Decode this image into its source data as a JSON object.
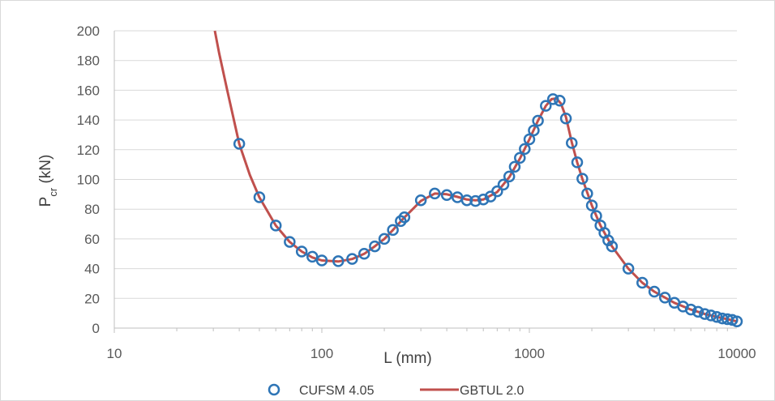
{
  "chart_data": {
    "type": "scatter",
    "xlabel": "L (mm)",
    "ylabel_main": "P",
    "ylabel_sub": "cr",
    "ylabel_unit": " (kN)",
    "xscale": "log",
    "xlim": [
      10,
      10000
    ],
    "ylim": [
      0,
      200
    ],
    "x_ticks": [
      10,
      100,
      1000,
      10000
    ],
    "x_tick_labels": [
      "10",
      "100",
      "1000",
      "10000"
    ],
    "y_ticks": [
      0,
      20,
      40,
      60,
      80,
      100,
      120,
      140,
      160,
      180,
      200
    ],
    "y_tick_labels": [
      "0",
      "20",
      "40",
      "60",
      "80",
      "100",
      "120",
      "140",
      "160",
      "180",
      "200"
    ],
    "grid": "horizontal",
    "legend_position": "bottom",
    "series": [
      {
        "name": "CUFSM 4.05",
        "style": "markers",
        "color": "#2e75b6",
        "points": [
          [
            40,
            124
          ],
          [
            50,
            88
          ],
          [
            60,
            69
          ],
          [
            70,
            58
          ],
          [
            80,
            51.5
          ],
          [
            90,
            48
          ],
          [
            100,
            45.5
          ],
          [
            120,
            45
          ],
          [
            140,
            46.5
          ],
          [
            160,
            50
          ],
          [
            180,
            55
          ],
          [
            200,
            60
          ],
          [
            220,
            66
          ],
          [
            240,
            72
          ],
          [
            250,
            74.5
          ],
          [
            300,
            86
          ],
          [
            350,
            90.5
          ],
          [
            400,
            89.5
          ],
          [
            450,
            88
          ],
          [
            500,
            86
          ],
          [
            550,
            85.5
          ],
          [
            600,
            86.5
          ],
          [
            650,
            88.5
          ],
          [
            700,
            92
          ],
          [
            750,
            96.5
          ],
          [
            800,
            102
          ],
          [
            850,
            108.5
          ],
          [
            900,
            114.5
          ],
          [
            950,
            120.5
          ],
          [
            1000,
            127
          ],
          [
            1050,
            133
          ],
          [
            1100,
            139.5
          ],
          [
            1200,
            149.5
          ],
          [
            1300,
            154
          ],
          [
            1400,
            153
          ],
          [
            1500,
            141
          ],
          [
            1600,
            124.5
          ],
          [
            1700,
            111.5
          ],
          [
            1800,
            100.5
          ],
          [
            1900,
            90.5
          ],
          [
            2000,
            82.5
          ],
          [
            2100,
            75.5
          ],
          [
            2200,
            69
          ],
          [
            2300,
            64
          ],
          [
            2400,
            59
          ],
          [
            2500,
            55
          ],
          [
            3000,
            40
          ],
          [
            3500,
            30.5
          ],
          [
            4000,
            24.5
          ],
          [
            4500,
            20.5
          ],
          [
            5000,
            17
          ],
          [
            5500,
            14.5
          ],
          [
            6000,
            12.5
          ],
          [
            6500,
            11
          ],
          [
            7000,
            9.5
          ],
          [
            7500,
            8.5
          ],
          [
            8000,
            7.5
          ],
          [
            8500,
            6.5
          ],
          [
            9000,
            6
          ],
          [
            9500,
            5.5
          ],
          [
            10000,
            4.5
          ]
        ]
      },
      {
        "name": "GBTUL 2.0",
        "style": "line",
        "color": "#c0504d",
        "points": [
          [
            30.5,
            200
          ],
          [
            32,
            185
          ],
          [
            35,
            160
          ],
          [
            40,
            124
          ],
          [
            45,
            103
          ],
          [
            50,
            88
          ],
          [
            60,
            69
          ],
          [
            70,
            58
          ],
          [
            80,
            51.5
          ],
          [
            90,
            47.5
          ],
          [
            100,
            45.5
          ],
          [
            120,
            44.8
          ],
          [
            140,
            46.5
          ],
          [
            160,
            50
          ],
          [
            180,
            55
          ],
          [
            200,
            60
          ],
          [
            220,
            66
          ],
          [
            250,
            74.5
          ],
          [
            300,
            85.5
          ],
          [
            350,
            90.5
          ],
          [
            400,
            90
          ],
          [
            450,
            88.3
          ],
          [
            500,
            86.5
          ],
          [
            550,
            86
          ],
          [
            600,
            86.5
          ],
          [
            700,
            91.5
          ],
          [
            800,
            101.5
          ],
          [
            900,
            114
          ],
          [
            1000,
            127
          ],
          [
            1100,
            139.5
          ],
          [
            1200,
            149.5
          ],
          [
            1280,
            154
          ],
          [
            1350,
            154.5
          ],
          [
            1420,
            151
          ],
          [
            1500,
            142
          ],
          [
            1600,
            125
          ],
          [
            1700,
            111.5
          ],
          [
            1800,
            100.5
          ],
          [
            2000,
            82.5
          ],
          [
            2200,
            69
          ],
          [
            2500,
            55
          ],
          [
            3000,
            40
          ],
          [
            3500,
            30.5
          ],
          [
            4000,
            24.5
          ],
          [
            5000,
            17
          ],
          [
            6000,
            12.5
          ],
          [
            7000,
            9.5
          ],
          [
            8000,
            7.5
          ],
          [
            9000,
            6
          ],
          [
            10000,
            4.5
          ]
        ]
      }
    ]
  },
  "colors": {
    "marker_edge": "#2e75b6",
    "line": "#c0504d",
    "axis": "#bfbfbf",
    "grid": "#d9d9d9"
  }
}
